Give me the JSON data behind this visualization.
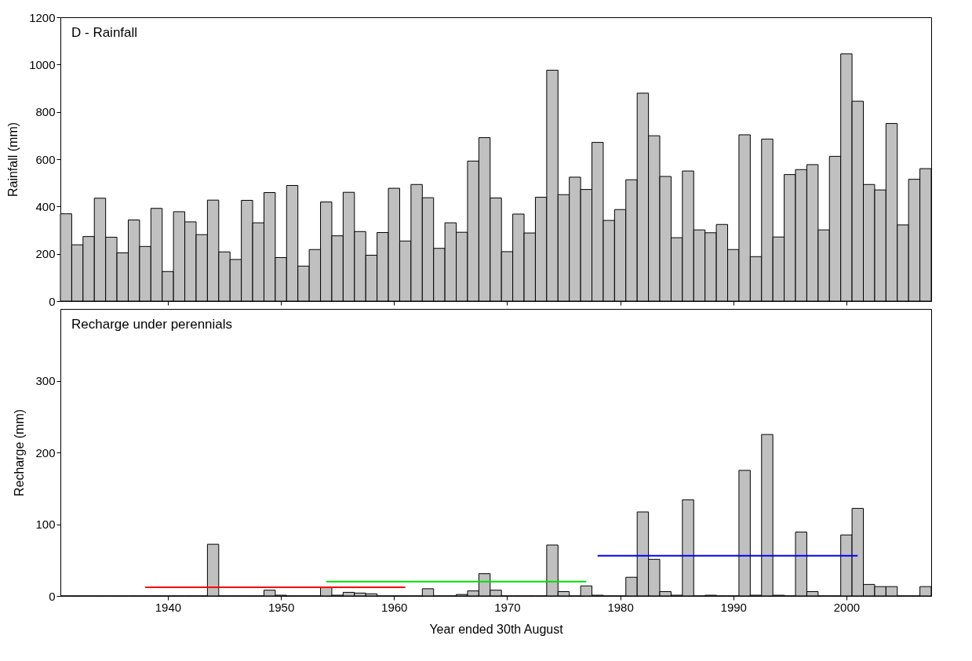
{
  "chart_data": [
    {
      "type": "bar",
      "title": "D - Rainfall",
      "ylabel": "Rainfall (mm)",
      "color": "#c0c0c0",
      "x": [
        1931,
        1932,
        1933,
        1934,
        1935,
        1936,
        1937,
        1938,
        1939,
        1940,
        1941,
        1942,
        1943,
        1944,
        1945,
        1946,
        1947,
        1948,
        1949,
        1950,
        1951,
        1952,
        1953,
        1954,
        1955,
        1956,
        1957,
        1958,
        1959,
        1960,
        1961,
        1962,
        1963,
        1964,
        1965,
        1966,
        1967,
        1968,
        1969,
        1970,
        1971,
        1972,
        1973,
        1974,
        1975,
        1976,
        1977,
        1978,
        1979,
        1980,
        1981,
        1982,
        1983,
        1984,
        1985,
        1986,
        1987,
        1988,
        1989,
        1990,
        1991,
        1992,
        1993,
        1994,
        1995,
        1996,
        1997,
        1998,
        1999,
        2000,
        2001,
        2002,
        2003,
        2004,
        2005,
        2006,
        2007
      ],
      "values": [
        369,
        238,
        273,
        435,
        270,
        204,
        343,
        231,
        392,
        125,
        378,
        335,
        281,
        427,
        208,
        176,
        426,
        331,
        459,
        184,
        489,
        148,
        218,
        419,
        276,
        460,
        294,
        194,
        290,
        477,
        254,
        493,
        437,
        223,
        331,
        291,
        592,
        691,
        436,
        209,
        368,
        288,
        439,
        976,
        450,
        524,
        472,
        671,
        341,
        387,
        513,
        879,
        699,
        527,
        268,
        550,
        301,
        289,
        324,
        218,
        703,
        188,
        685,
        271,
        535,
        556,
        577,
        301,
        612,
        1045,
        845,
        493,
        470,
        751,
        322,
        515,
        560
      ],
      "xlim": [
        1930.5,
        2007.5
      ],
      "xticks": [
        1940,
        1950,
        1960,
        1970,
        1980,
        1990,
        2000
      ],
      "ylim": [
        0,
        1200
      ],
      "yticks": [
        0,
        200,
        400,
        600,
        800,
        1000,
        1200
      ],
      "tick_labels": "y"
    },
    {
      "type": "bar",
      "title": "Recharge under perennials",
      "xlabel": "Year ended 30th August",
      "ylabel": "Recharge (mm)",
      "x": [
        1931,
        1932,
        1933,
        1934,
        1935,
        1936,
        1937,
        1938,
        1939,
        1940,
        1941,
        1942,
        1943,
        1944,
        1945,
        1946,
        1947,
        1948,
        1949,
        1950,
        1951,
        1952,
        1953,
        1954,
        1955,
        1956,
        1957,
        1958,
        1959,
        1960,
        1961,
        1962,
        1963,
        1964,
        1965,
        1966,
        1967,
        1968,
        1969,
        1970,
        1971,
        1972,
        1973,
        1974,
        1975,
        1976,
        1977,
        1978,
        1979,
        1980,
        1981,
        1982,
        1983,
        1984,
        1985,
        1986,
        1987,
        1988,
        1989,
        1990,
        1991,
        1992,
        1993,
        1994,
        1995,
        1996,
        1997,
        1998,
        1999,
        2000,
        2001,
        2002,
        2003,
        2004,
        2005,
        2006,
        2007
      ],
      "series": [
        {
          "color": "#c0c0c0",
          "values": [
            0,
            0,
            0,
            0,
            0,
            0,
            0,
            0,
            0,
            0,
            0,
            0,
            0,
            72,
            0,
            0,
            0,
            0,
            8,
            1,
            0,
            0,
            0,
            12,
            1,
            5,
            4,
            3,
            0,
            0,
            0,
            0,
            10,
            0,
            0,
            2,
            7,
            31,
            8,
            0,
            0,
            0,
            0,
            71,
            6,
            0,
            14,
            1,
            0,
            0,
            26,
            117,
            51,
            6,
            1,
            134,
            0,
            1,
            0,
            0,
            175,
            1,
            225,
            1,
            0,
            89,
            6,
            0,
            0,
            85,
            122,
            16,
            13,
            13,
            0,
            0,
            13
          ]
        },
        {
          "type": "line",
          "color": "#ff0000",
          "x": [
            1938,
            1961
          ],
          "values": [
            12,
            12
          ]
        },
        {
          "type": "line",
          "color": "#00e000",
          "x": [
            1954,
            1977
          ],
          "values": [
            20,
            20
          ]
        },
        {
          "type": "line",
          "color": "#0000ff",
          "x": [
            1978,
            2001
          ],
          "values": [
            56,
            56
          ]
        }
      ],
      "xlim": [
        1930.5,
        2007.5
      ],
      "xticks": [
        1940,
        1950,
        1960,
        1970,
        1980,
        1990,
        2000
      ],
      "ylim": [
        0,
        400
      ],
      "yticks": [
        0,
        100,
        200,
        300
      ]
    }
  ]
}
